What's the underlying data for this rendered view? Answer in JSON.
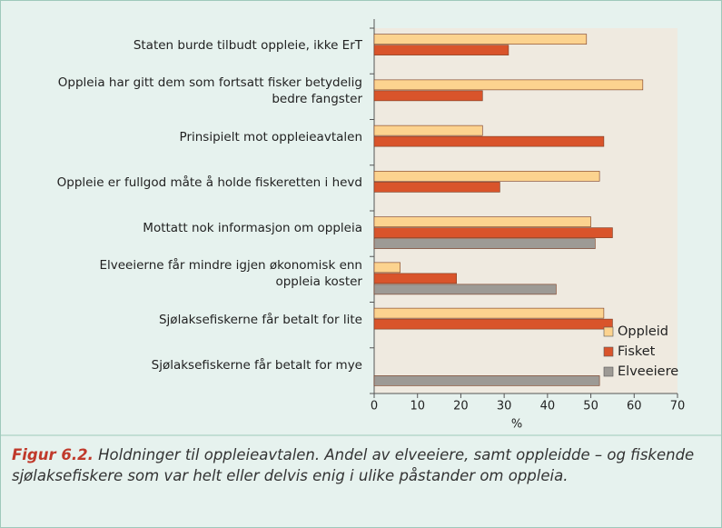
{
  "chart_data": {
    "type": "barh",
    "categories": [
      "Staten burde tilbudt oppleie, ikke ErT",
      "Oppleia har gitt dem som fortsatt fisker betydelig\nbedre fangster",
      "Prinsipielt mot oppleieavtalen",
      "Oppleie er fullgod måte å holde fiskeretten i hevd",
      "Mottatt nok informasjon om oppleia",
      "Elveeierne får mindre igjen økonomisk enn\noppleia koster",
      "Sjølaksefiskerne får betalt for lite",
      "Sjølaksefiskerne får betalt for mye"
    ],
    "series": [
      {
        "name": "Oppleid",
        "color": "#fcd38f",
        "values": [
          49,
          62,
          25,
          52,
          50,
          6,
          53,
          null
        ]
      },
      {
        "name": "Fisket",
        "color": "#d9542b",
        "values": [
          31,
          25,
          53,
          29,
          55,
          19,
          55,
          null
        ]
      },
      {
        "name": "Elveeiere",
        "color": "#9d9a95",
        "values": [
          null,
          null,
          null,
          null,
          51,
          42,
          null,
          52
        ]
      }
    ],
    "xlim": [
      0,
      70
    ],
    "xticks": [
      0,
      10,
      20,
      30,
      40,
      50,
      60,
      70
    ],
    "xlabel": "%",
    "legend": "lower right"
  },
  "caption": {
    "label": "Figur 6.2.",
    "text": "Holdninger til oppleieavtalen. Andel av elveeiere, samt oppleidde – og fiskende sjølaksefiskere som var helt eller delvis enig i ulike påstander om oppleia."
  }
}
